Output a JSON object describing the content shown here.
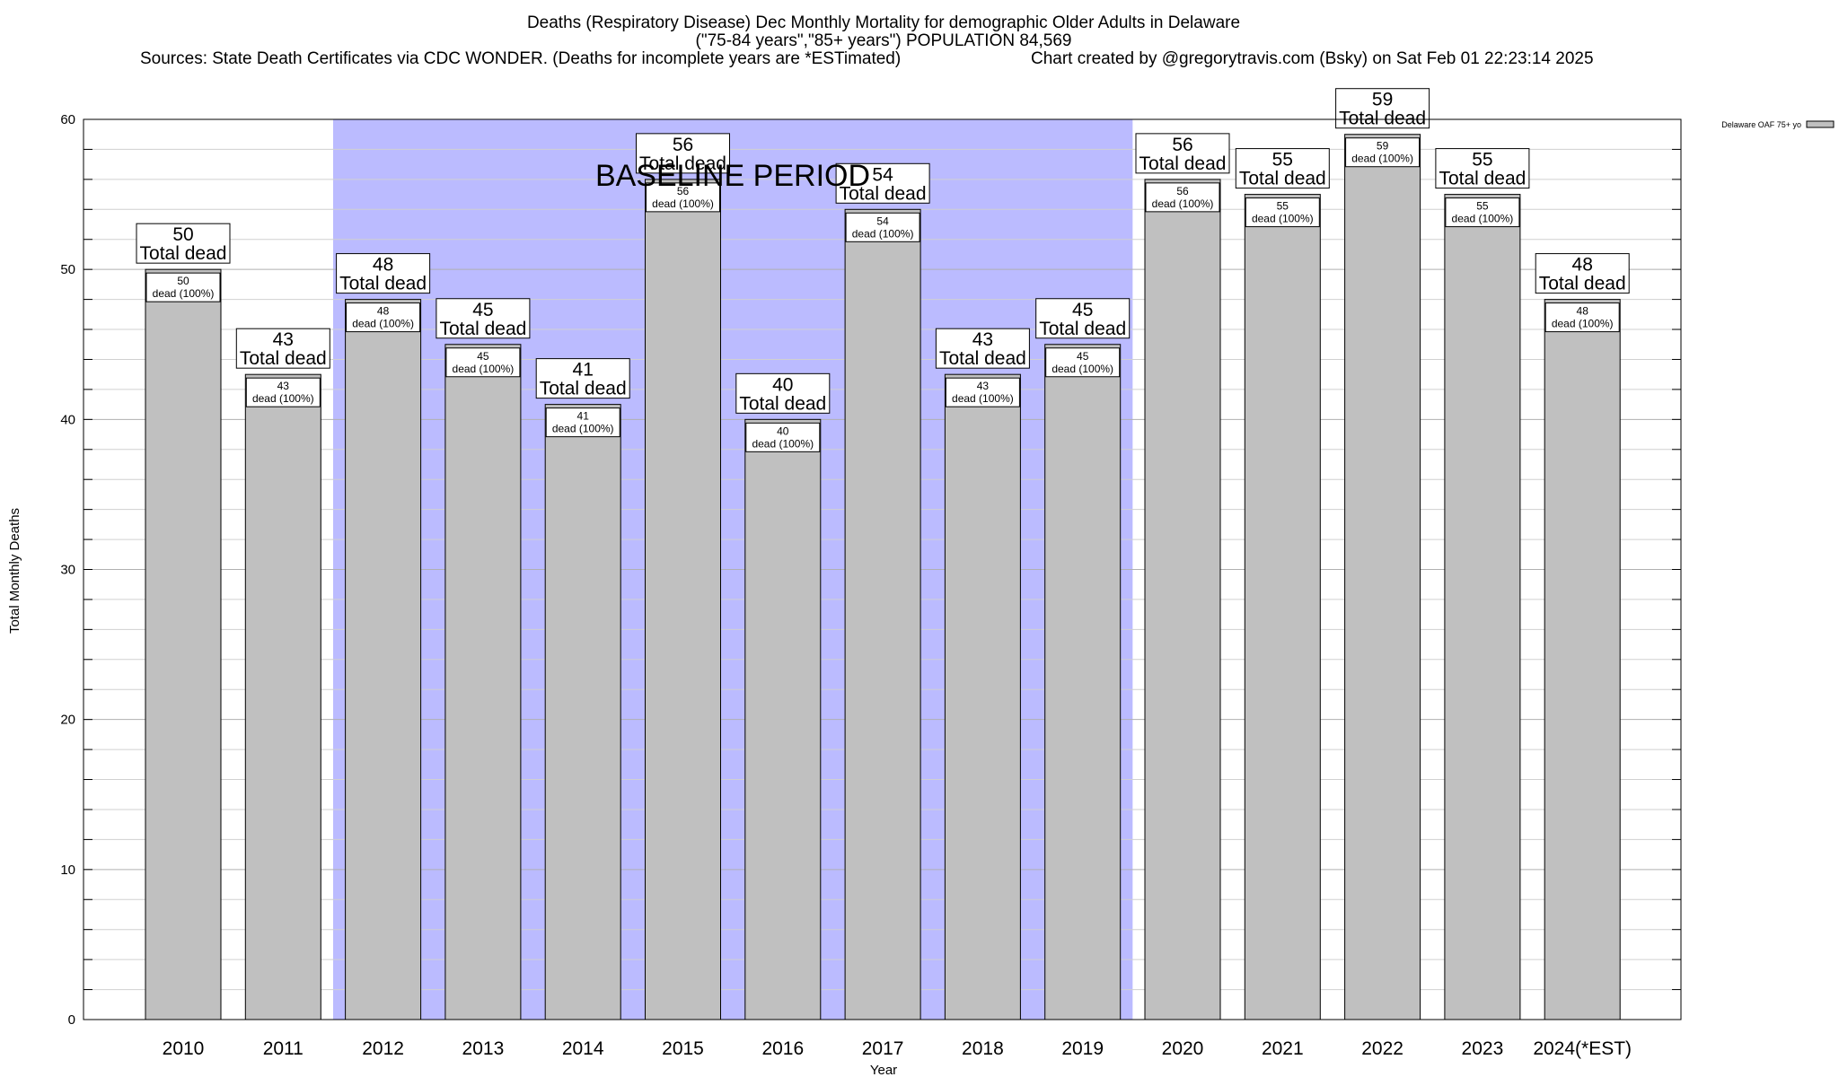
{
  "header": {
    "title_line1": "Deaths (Respiratory Disease) Dec Monthly Mortality for demographic Older Adults in Delaware",
    "title_line2": "(\"75-84 years\",\"85+ years\") POPULATION 84,569",
    "sources": "Sources: State Death Certificates via CDC WONDER. (Deaths for incomplete years are *ESTimated)",
    "credit": "Chart created by @gregorytravis.com (Bsky) on Sat Feb 01 22:23:14 2025"
  },
  "chart_data": {
    "type": "bar",
    "title": "Deaths (Respiratory Disease) Dec Monthly Mortality for demographic Older Adults in Delaware",
    "xlabel": "Year",
    "ylabel": "Total Monthly Deaths",
    "ylim": [
      0,
      60
    ],
    "yticks": [
      0,
      10,
      20,
      30,
      40,
      50,
      60
    ],
    "grid": true,
    "categories": [
      "2010",
      "2011",
      "2012",
      "2013",
      "2014",
      "2015",
      "2016",
      "2017",
      "2018",
      "2019",
      "2020",
      "2021",
      "2022",
      "2023",
      "2024(*EST)"
    ],
    "series": [
      {
        "name": "Delaware OAF 75+ yo",
        "color": "#c0c0c0",
        "values": [
          50,
          43,
          48,
          45,
          41,
          56,
          40,
          54,
          43,
          45,
          56,
          55,
          59,
          55,
          48
        ]
      }
    ],
    "total_label": "Total dead",
    "inner_label": "dead (100%)",
    "baseline": {
      "label": "BASELINE PERIOD",
      "from": "2012",
      "to": "2019",
      "color": "#bbbbff"
    },
    "legend_position": "top-right"
  }
}
